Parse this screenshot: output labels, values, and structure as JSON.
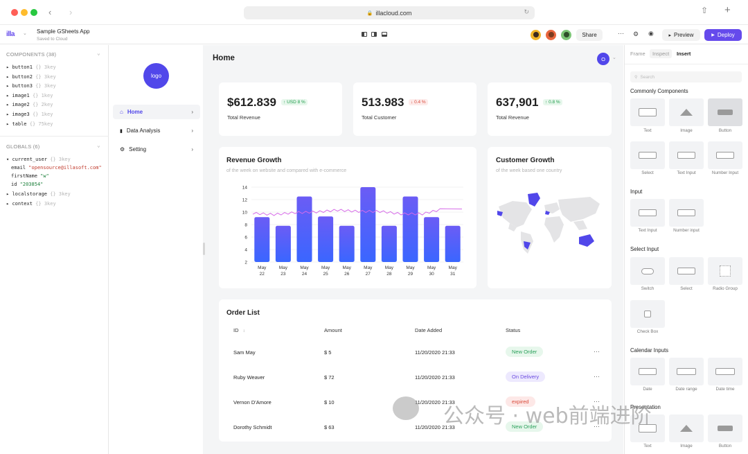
{
  "browser": {
    "url": "illacloud.com"
  },
  "app": {
    "name": "Sample GSheets App",
    "saved": "Saved to Cloud",
    "share": "Share",
    "preview": "Preview",
    "deploy": "Deploy"
  },
  "left": {
    "components_title": "COMPONENTS (38)",
    "components": [
      {
        "name": "button1",
        "meta": "{} 3key"
      },
      {
        "name": "button2",
        "meta": "{} 3key"
      },
      {
        "name": "button3",
        "meta": "{} 3key"
      },
      {
        "name": "image1",
        "meta": "{} 1key"
      },
      {
        "name": "image2",
        "meta": "{} 2key"
      },
      {
        "name": "image3",
        "meta": "{} 1key"
      },
      {
        "name": "table",
        "meta": "{} 75key"
      }
    ],
    "globals_title": "GLOBALS (6)",
    "current_user": {
      "name": "current_user",
      "meta": "{} 3key",
      "email_k": "email",
      "email_v": "\"opensource@illasoft.com\"",
      "first_k": "firstName",
      "first_v": "\"w\"",
      "id_k": "id",
      "id_v": "\"203854\""
    },
    "localstorage": {
      "name": "localstorage",
      "meta": "{} 3key"
    },
    "context": {
      "name": "context",
      "meta": "{} 3key"
    }
  },
  "nav": {
    "logo": "logo",
    "items": [
      "Home",
      "Data Analysis",
      "Setting"
    ]
  },
  "page": {
    "title": "Home",
    "avatar": "O"
  },
  "stats": [
    {
      "value": "$612.839",
      "delta": "USD 8 %",
      "dir": "up",
      "label": "Total Revenue"
    },
    {
      "value": "513.983",
      "delta": "0.4 %",
      "dir": "down",
      "label": "Total Customer"
    },
    {
      "value": "637,901",
      "delta": "0.8 %",
      "dir": "up",
      "label": "Total Revenue"
    }
  ],
  "revenue": {
    "title": "Revenue Growth",
    "subtitle": "of the week on website and compared with e-commerce"
  },
  "customer": {
    "title": "Customer Growth",
    "subtitle": "of the week based one country"
  },
  "chart_data": {
    "type": "bar",
    "categories": [
      "May 22",
      "May 23",
      "May 24",
      "May 25",
      "May 26",
      "May 27",
      "May 28",
      "May 29",
      "May 30",
      "May 31"
    ],
    "series": [
      {
        "values": [
          9.2,
          7.8,
          12.5,
          9.3,
          7.8,
          14,
          7.8,
          12.5,
          9.2,
          7.8
        ]
      },
      {
        "type": "line",
        "values": [
          9.8,
          9.6,
          9.9,
          10.0,
          10.3,
          10.1,
          10.1,
          9.7,
          9.7,
          10.5
        ]
      }
    ],
    "yticks": [
      2,
      4,
      6,
      8,
      10,
      12,
      14
    ],
    "ylim": [
      2,
      14
    ],
    "colors": {
      "bar_top": "#6b5cf5",
      "bar_bottom": "#3a66ff",
      "line": "#d66be8"
    }
  },
  "orders": {
    "title": "Order List",
    "headers": [
      "ID",
      "Amount",
      "Date Added",
      "Status"
    ],
    "rows": [
      {
        "name": "Sam May",
        "amount": "$ 5",
        "date": "11/20/2020 21:33",
        "status": "New Order"
      },
      {
        "name": "Ruby Weaver",
        "amount": "$ 72",
        "date": "11/20/2020 21:33",
        "status": "On Delivery"
      },
      {
        "name": "Vernon D'Amore",
        "amount": "$ 10",
        "date": "11/20/2020 21:33",
        "status": "expired"
      },
      {
        "name": "Dorothy Schmidt",
        "amount": "$ 63",
        "date": "11/20/2020 21:33",
        "status": "New Order"
      }
    ],
    "more": "···"
  },
  "right": {
    "tabs": [
      "Frame",
      "Inspect",
      "Insert"
    ],
    "search": "Search",
    "sections": [
      {
        "title": "Commonly Components",
        "items": [
          "Text",
          "Image",
          "Button",
          "Select",
          "Text Input",
          "Number Input"
        ]
      },
      {
        "title": "Input",
        "items": [
          "Text Input",
          "Number input"
        ]
      },
      {
        "title": "Select Input",
        "items": [
          "Switch",
          "Select",
          "Radio Group",
          "Check Box"
        ]
      },
      {
        "title": "Calendar Inputs",
        "items": [
          "Date",
          "Date range",
          "Date time"
        ]
      },
      {
        "title": "Presentation",
        "items": [
          "Text",
          "Image",
          "Button"
        ]
      }
    ]
  },
  "watermark": {
    "text": "公众号 · web前端进阶"
  }
}
